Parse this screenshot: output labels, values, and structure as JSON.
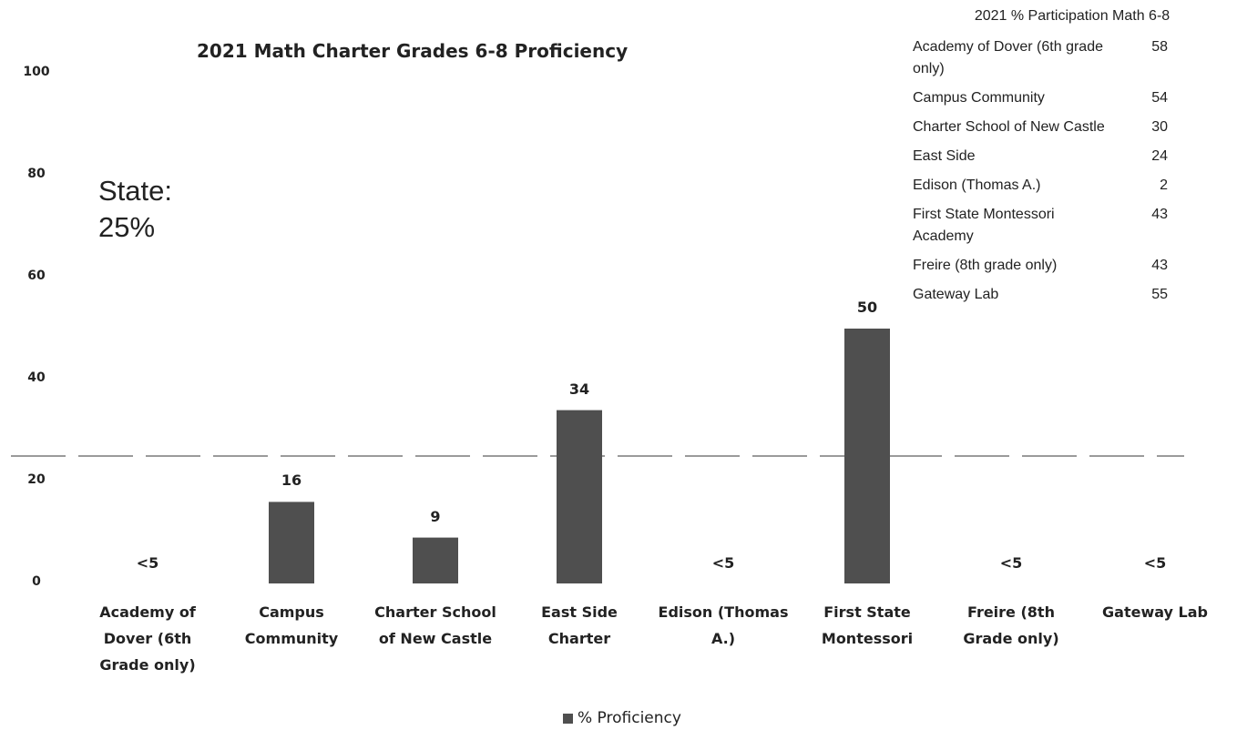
{
  "chart_data": {
    "type": "bar",
    "title": "2021 Math Charter Grades 6-8 Proficiency",
    "categories": [
      "Academy of Dover (6th Grade only)",
      "Campus Community",
      "Charter School of New Castle",
      "East Side Charter",
      "Edison (Thomas A.)",
      "First State Montessori",
      "Freire (8th Grade only)",
      "Gateway Lab"
    ],
    "series": [
      {
        "name": "% Proficiency",
        "color": "#4f4f4f",
        "values": [
          null,
          16,
          9,
          34,
          null,
          50,
          null,
          null
        ],
        "value_labels": [
          "<5",
          "16",
          "9",
          "34",
          "<5",
          "50",
          "<5",
          "<5"
        ]
      }
    ],
    "ylim": [
      0,
      100
    ],
    "yticks": [
      0,
      20,
      40,
      60,
      80,
      100
    ],
    "grid": false,
    "reference_line": 25,
    "annotation": "State: 25%",
    "legend": "bottom"
  },
  "table": {
    "title": "2021 % Participation Math 6-8",
    "rows": [
      [
        "Academy of Dover (6th grade only)",
        "58"
      ],
      [
        "Campus Community",
        "54"
      ],
      [
        "Charter School of New Castle",
        "30"
      ],
      [
        "East Side",
        "24"
      ],
      [
        "Edison (Thomas A.)",
        "2"
      ],
      [
        "First State Montessori Academy",
        "43"
      ],
      [
        "Freire (8th grade only)",
        "43"
      ],
      [
        "Gateway Lab",
        "55"
      ]
    ]
  }
}
